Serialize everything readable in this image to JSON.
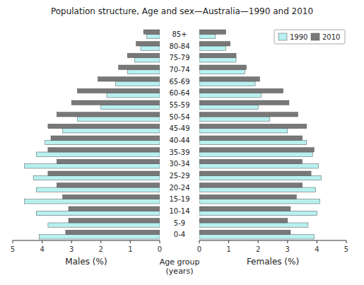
{
  "chart_data": [
    {
      "type": "bar",
      "orientation": "horizontal",
      "title": "Population structure, Age and sex—Australia—1990 and 2010",
      "xlabel": "Males (%)",
      "ylabel": "Age group\n(years)",
      "categories": [
        "0-4",
        "5-9",
        "10-14",
        "15-19",
        "20-24",
        "25-29",
        "30-34",
        "35-39",
        "40-44",
        "45-49",
        "50-54",
        "55-59",
        "60-64",
        "65-69",
        "70-74",
        "75-79",
        "80-84",
        "85+"
      ],
      "series": [
        {
          "name": "1990",
          "color": "#b8f0f0",
          "values": [
            4.1,
            3.8,
            4.2,
            4.6,
            4.2,
            4.3,
            4.6,
            4.2,
            3.9,
            3.3,
            2.8,
            2.0,
            1.8,
            1.5,
            1.1,
            0.85,
            0.65,
            0.45
          ]
        },
        {
          "name": "2010",
          "color": "#787878",
          "values": [
            3.2,
            3.1,
            3.1,
            3.3,
            3.5,
            3.8,
            3.5,
            3.8,
            3.7,
            3.8,
            3.5,
            3.0,
            2.8,
            2.1,
            1.4,
            1.1,
            0.8,
            0.55
          ]
        }
      ],
      "xlim": [
        5,
        0
      ],
      "xticks": [
        5,
        4,
        3,
        2,
        1,
        0
      ]
    },
    {
      "type": "bar",
      "orientation": "horizontal",
      "xlabel": "Females (%)",
      "categories": [
        "0-4",
        "5-9",
        "10-14",
        "15-19",
        "20-24",
        "25-29",
        "30-34",
        "35-39",
        "40-44",
        "45-49",
        "50-54",
        "55-59",
        "60-64",
        "65-69",
        "70-74",
        "75-79",
        "80-84",
        "85+"
      ],
      "series": [
        {
          "name": "1990",
          "color": "#b8f0f0",
          "values": [
            3.9,
            3.7,
            4.0,
            4.1,
            3.95,
            4.15,
            4.05,
            3.85,
            3.65,
            3.0,
            2.4,
            2.0,
            2.1,
            1.9,
            1.55,
            1.25,
            0.9,
            0.55
          ]
        },
        {
          "name": "2010",
          "color": "#787878",
          "values": [
            3.1,
            3.0,
            3.1,
            3.3,
            3.5,
            3.8,
            3.5,
            3.9,
            3.5,
            3.65,
            3.35,
            3.05,
            2.85,
            2.05,
            1.6,
            1.25,
            1.05,
            0.9
          ]
        }
      ],
      "xlim": [
        0,
        5
      ],
      "xticks": [
        0,
        1,
        2,
        3,
        4,
        5
      ],
      "legend": "upper right"
    }
  ]
}
